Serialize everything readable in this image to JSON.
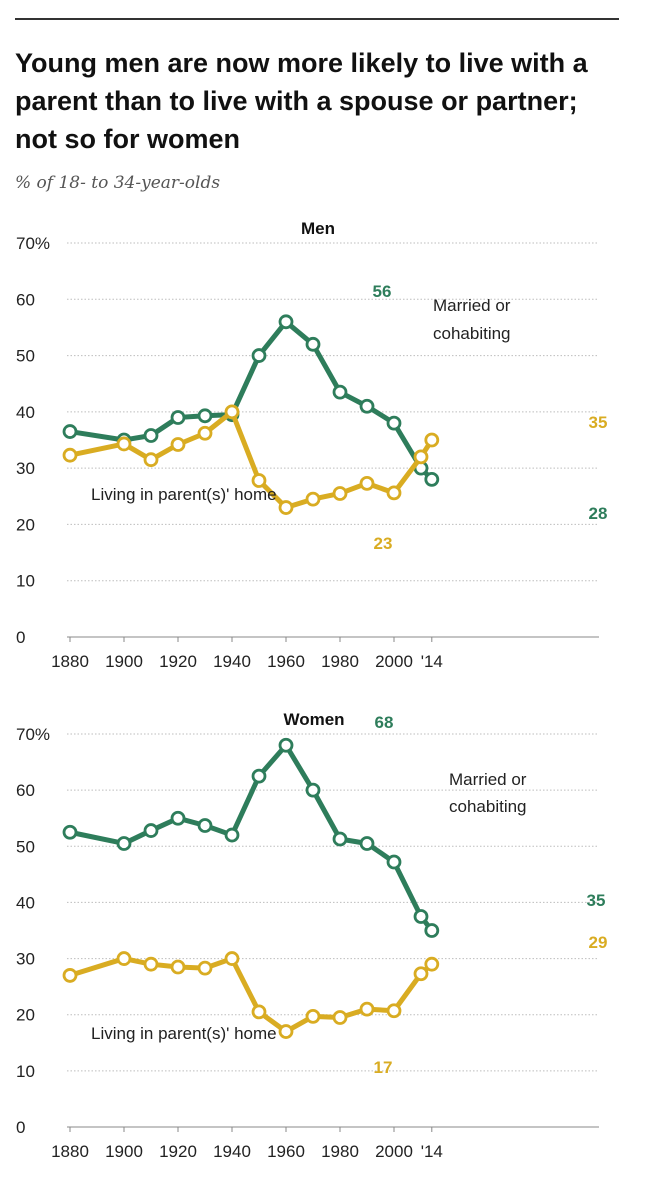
{
  "title": "Young men are now more likely to live with a parent than to live with a spouse or partner; not so for women",
  "subtitle": "% of 18- to 34-year-olds",
  "colors": {
    "married": "#2e7d5b",
    "parents": "#d9ac22",
    "grid": "#bdbdbd",
    "axis": "#888888"
  },
  "chart_data": [
    {
      "type": "line",
      "title": "Men",
      "ylim": [
        0,
        70
      ],
      "y_ticks": [
        "70%",
        "60",
        "50",
        "40",
        "30",
        "20",
        "10",
        "0"
      ],
      "x_ticks": [
        "1880",
        "1900",
        "1920",
        "1940",
        "1960",
        "1980",
        "2000",
        "'14"
      ],
      "grid": true,
      "series": [
        {
          "name": "Married or cohabiting",
          "color_key": "married",
          "points": [
            [
              1880,
              36.5
            ],
            [
              1900,
              35
            ],
            [
              1910,
              35.8
            ],
            [
              1920,
              39
            ],
            [
              1930,
              39.3
            ],
            [
              1940,
              39.5
            ],
            [
              1950,
              50
            ],
            [
              1960,
              56
            ],
            [
              1970,
              52
            ],
            [
              1980,
              43.5
            ],
            [
              1990,
              41
            ],
            [
              2000,
              38
            ],
            [
              2010,
              30
            ],
            [
              2014,
              28
            ]
          ],
          "labels": [
            "56",
            "28"
          ]
        },
        {
          "name": "Living in parent(s)' home",
          "color_key": "parents",
          "points": [
            [
              1880,
              32.3
            ],
            [
              1900,
              34.3
            ],
            [
              1910,
              31.5
            ],
            [
              1920,
              34.2
            ],
            [
              1930,
              36.2
            ],
            [
              1940,
              40
            ],
            [
              1950,
              27.8
            ],
            [
              1960,
              23
            ],
            [
              1970,
              24.5
            ],
            [
              1980,
              25.5
            ],
            [
              1990,
              27.3
            ],
            [
              2000,
              25.6
            ],
            [
              2010,
              32
            ],
            [
              2014,
              35
            ]
          ],
          "labels": [
            "23",
            "35"
          ]
        }
      ],
      "series_labels": {
        "married": [
          "Married or",
          "cohabiting"
        ],
        "parents": [
          "Living in parent(s)' home"
        ]
      }
    },
    {
      "type": "line",
      "title": "Women",
      "ylim": [
        0,
        70
      ],
      "y_ticks": [
        "70%",
        "60",
        "50",
        "40",
        "30",
        "20",
        "10",
        "0"
      ],
      "x_ticks": [
        "1880",
        "1900",
        "1920",
        "1940",
        "1960",
        "1980",
        "2000",
        "'14"
      ],
      "grid": true,
      "series": [
        {
          "name": "Married or cohabiting",
          "color_key": "married",
          "points": [
            [
              1880,
              52.5
            ],
            [
              1900,
              50.5
            ],
            [
              1910,
              52.8
            ],
            [
              1920,
              55
            ],
            [
              1930,
              53.7
            ],
            [
              1940,
              52
            ],
            [
              1950,
              62.5
            ],
            [
              1960,
              68
            ],
            [
              1970,
              60
            ],
            [
              1980,
              51.3
            ],
            [
              1990,
              50.5
            ],
            [
              2000,
              47.2
            ],
            [
              2010,
              37.5
            ],
            [
              2014,
              35
            ]
          ],
          "labels": [
            "68",
            "35"
          ]
        },
        {
          "name": "Living in parent(s)' home",
          "color_key": "parents",
          "points": [
            [
              1880,
              27
            ],
            [
              1900,
              30
            ],
            [
              1910,
              29
            ],
            [
              1920,
              28.5
            ],
            [
              1930,
              28.3
            ],
            [
              1940,
              30
            ],
            [
              1950,
              20.5
            ],
            [
              1960,
              17
            ],
            [
              1970,
              19.7
            ],
            [
              1980,
              19.5
            ],
            [
              1990,
              21
            ],
            [
              2000,
              20.7
            ],
            [
              2010,
              27.3
            ],
            [
              2014,
              29
            ]
          ],
          "labels": [
            "17",
            "29"
          ]
        }
      ],
      "series_labels": {
        "married": [
          "Married or",
          "cohabiting"
        ],
        "parents": [
          "Living in parent(s)' home"
        ]
      }
    }
  ]
}
